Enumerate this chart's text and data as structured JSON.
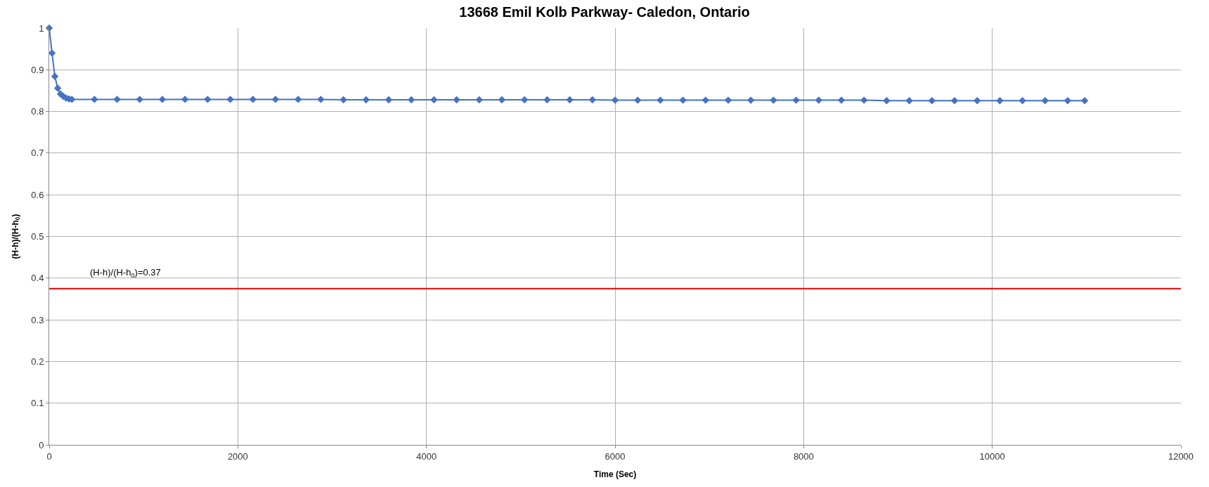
{
  "chart_data": {
    "type": "line",
    "title": "13668 Emil Kolb Parkway- Caledon, Ontario",
    "xlabel": "Time (Sec)",
    "ylabel": "(H-h)/(H-h$_{0}$)",
    "x": [
      0,
      30,
      60,
      90,
      120,
      150,
      180,
      210,
      240,
      480,
      720,
      960,
      1200,
      1440,
      1680,
      1920,
      2160,
      2400,
      2640,
      2880,
      3120,
      3360,
      3600,
      3840,
      4080,
      4320,
      4560,
      4800,
      5040,
      5280,
      5520,
      5760,
      6000,
      6240,
      6480,
      6720,
      6960,
      7200,
      7440,
      7680,
      7920,
      8160,
      8400,
      8640,
      8880,
      9120,
      9360,
      9600,
      9840,
      10080,
      10320,
      10560,
      10800,
      10980
    ],
    "series": [
      {
        "color": "#4472c4",
        "values": [
          1,
          0.94,
          0.884,
          0.856,
          0.842,
          0.836,
          0.832,
          0.83,
          0.829,
          0.829,
          0.829,
          0.829,
          0.829,
          0.829,
          0.829,
          0.829,
          0.829,
          0.829,
          0.829,
          0.829,
          0.828,
          0.828,
          0.828,
          0.828,
          0.828,
          0.828,
          0.828,
          0.828,
          0.828,
          0.828,
          0.828,
          0.828,
          0.827,
          0.827,
          0.827,
          0.827,
          0.827,
          0.827,
          0.827,
          0.827,
          0.827,
          0.827,
          0.827,
          0.827,
          0.826,
          0.826,
          0.826,
          0.826,
          0.826,
          0.826,
          0.826,
          0.826,
          0.826,
          0.826
        ]
      }
    ],
    "ref_lines": [
      {
        "axis": "y",
        "value": 0.375,
        "label": "(H-h)/(H-h$_{0}$)=0.37",
        "color": "#e00000",
        "line_style": "solid"
      }
    ],
    "xlim": [
      0,
      12000
    ],
    "xticks": [
      0,
      2000,
      4000,
      6000,
      8000,
      10000,
      12000
    ],
    "ylim": [
      0,
      1
    ],
    "yticks": [
      0,
      0.1,
      0.2,
      0.3,
      0.4,
      0.5,
      0.6,
      0.7,
      0.8,
      0.9,
      1
    ],
    "grid": true,
    "marker": "diamond",
    "line_style": "solid"
  }
}
